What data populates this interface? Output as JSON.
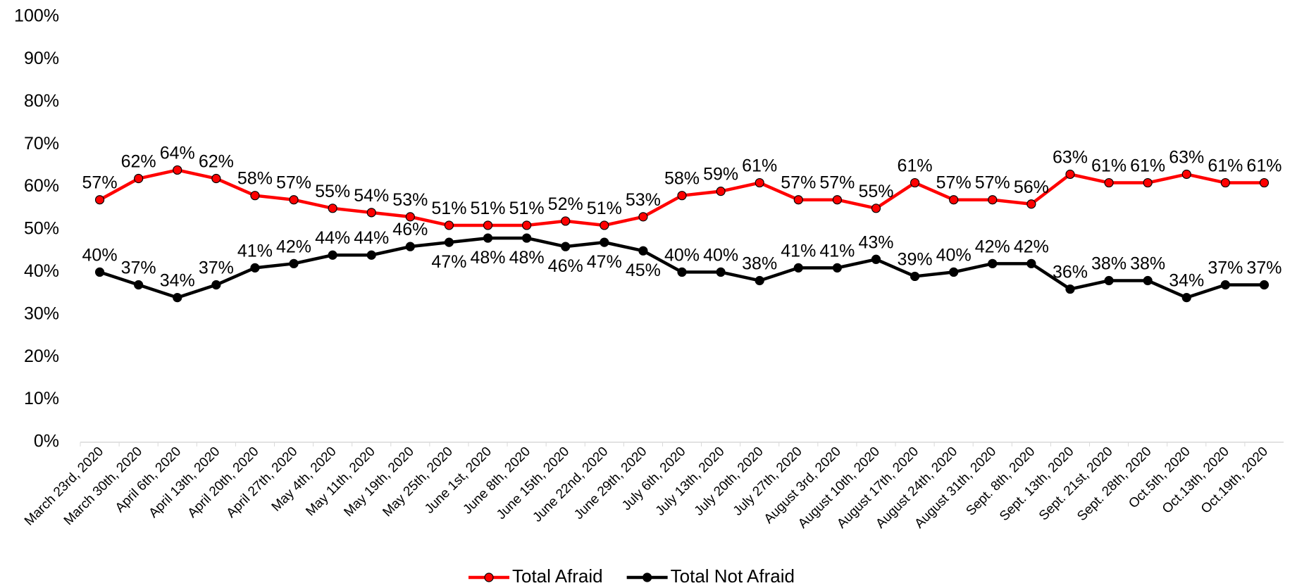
{
  "chart_data": {
    "type": "line",
    "categories": [
      "March 23rd, 2020",
      "March 30th, 2020",
      "April 6th, 2020",
      "April 13th, 2020",
      "April 20th, 2020",
      "April 27th, 2020",
      "May 4th, 2020",
      "May 11th, 2020",
      "May 19th, 2020",
      "May 25th, 2020",
      "June 1st, 2020",
      "June 8th, 2020",
      "June 15th, 2020",
      "June 22nd, 2020",
      "June 29th, 2020",
      "July 6th, 2020",
      "July 13th, 2020",
      "July 20th, 2020",
      "July 27th, 2020",
      "August 3rd, 2020",
      "August 10th, 2020",
      "August 17th, 2020",
      "August 24th, 2020",
      "August 31th, 2020",
      "Sept. 8th, 2020",
      "Sept. 13th, 2020",
      "Sept. 21st, 2020",
      "Sept. 28th, 2020",
      "Oct.5th, 2020",
      "Oct.13th, 2020",
      "Oct.19th, 2020"
    ],
    "series": [
      {
        "name": "Total Afraid",
        "color": "#ff0000",
        "values": [
          57,
          62,
          64,
          62,
          58,
          57,
          55,
          54,
          53,
          51,
          51,
          51,
          52,
          51,
          53,
          58,
          59,
          61,
          57,
          57,
          55,
          61,
          57,
          57,
          56,
          63,
          61,
          61,
          63,
          61,
          61
        ],
        "value_labels": [
          "57%",
          "62%",
          "64%",
          "62%",
          "58%",
          "57%",
          "55%",
          "54%",
          "53%",
          "51%",
          "51%",
          "51%",
          "52%",
          "51%",
          "53%",
          "58%",
          "59%",
          "61%",
          "57%",
          "57%",
          "55%",
          "61%",
          "57%",
          "57%",
          "56%",
          "63%",
          "61%",
          "61%",
          "63%",
          "61%",
          "61%"
        ]
      },
      {
        "name": "Total Not Afraid",
        "color": "#000000",
        "values": [
          40,
          37,
          34,
          37,
          41,
          42,
          44,
          44,
          46,
          47,
          48,
          48,
          46,
          47,
          45,
          40,
          40,
          38,
          41,
          41,
          43,
          39,
          40,
          42,
          42,
          36,
          38,
          38,
          34,
          37,
          37
        ],
        "value_labels": [
          "40%",
          "37%",
          "34%",
          "37%",
          "41%",
          "42%",
          "44%",
          "44%",
          "46%",
          "47%",
          "48%",
          "48%",
          "46%",
          "47%",
          "45%",
          "40%",
          "40%",
          "38%",
          "41%",
          "41%",
          "43%",
          "39%",
          "40%",
          "42%",
          "42%",
          "36%",
          "38%",
          "38%",
          "34%",
          "37%",
          "37%"
        ]
      }
    ],
    "ylim": [
      0,
      100
    ],
    "yticks": [
      {
        "value": 0,
        "label": "0%"
      },
      {
        "value": 10,
        "label": "10%"
      },
      {
        "value": 20,
        "label": "20%"
      },
      {
        "value": 30,
        "label": "30%"
      },
      {
        "value": 40,
        "label": "40%"
      },
      {
        "value": 50,
        "label": "50%"
      },
      {
        "value": 60,
        "label": "60%"
      },
      {
        "value": 70,
        "label": "70%"
      },
      {
        "value": 80,
        "label": "80%"
      },
      {
        "value": 90,
        "label": "90%"
      },
      {
        "value": 100,
        "label": "100%"
      }
    ],
    "grid": false,
    "legend": "bottom"
  }
}
